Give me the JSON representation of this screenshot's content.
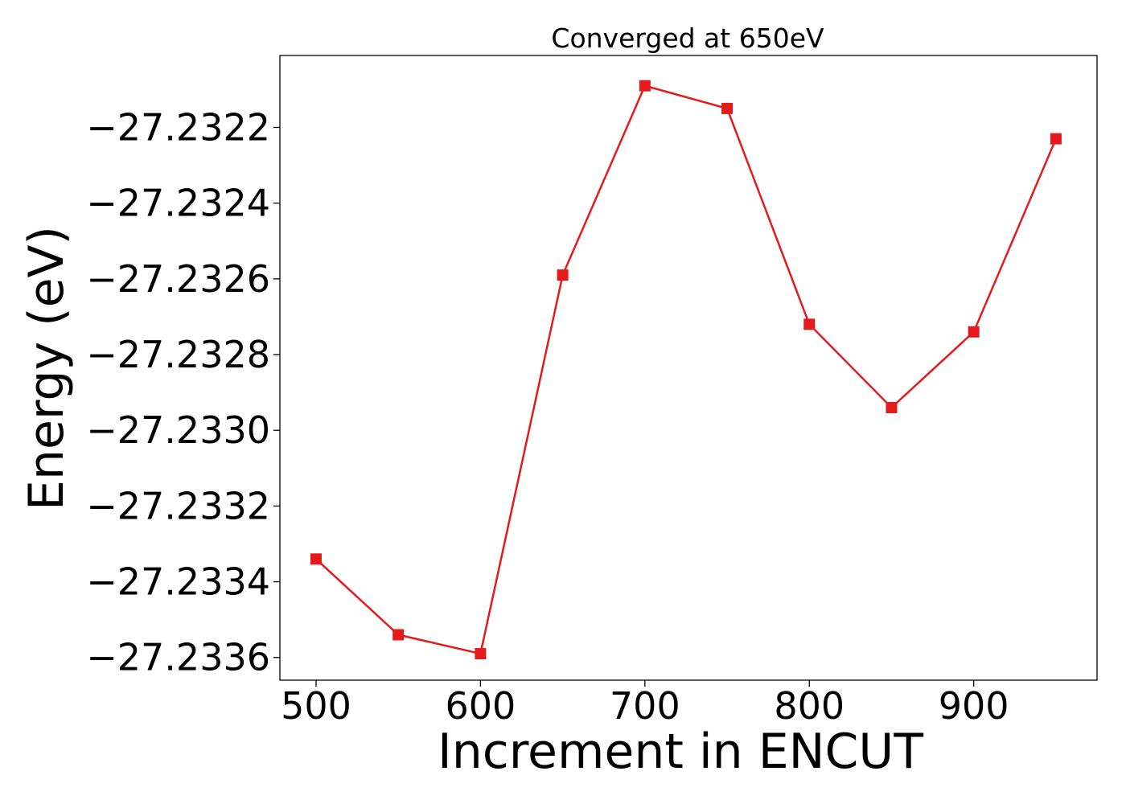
{
  "chart_data": {
    "type": "line",
    "title": "Converged at 650eV",
    "xlabel": "Increment in ENCUT",
    "ylabel": "Energy (eV)",
    "x": [
      500,
      550,
      600,
      650,
      700,
      750,
      800,
      850,
      900,
      950
    ],
    "series": [
      {
        "values": [
          -27.23334,
          -27.23354,
          -27.23359,
          -27.23259,
          -27.23209,
          -27.23215,
          -27.23272,
          -27.23294,
          -27.23274,
          -27.23223
        ],
        "color": "#e41a1c",
        "marker": "square"
      }
    ],
    "xlim": [
      478,
      975
    ],
    "ylim": [
      -27.23366,
      -27.23201
    ],
    "xticks": [
      500,
      600,
      700,
      800,
      900
    ],
    "xtick_labels": [
      "500",
      "600",
      "700",
      "800",
      "900"
    ],
    "yticks": [
      -27.2336,
      -27.2334,
      -27.2332,
      -27.233,
      -27.2328,
      -27.2326,
      -27.2324,
      -27.2322
    ],
    "ytick_labels": [
      "−27.2336",
      "−27.2334",
      "−27.2332",
      "−27.2330",
      "−27.2328",
      "−27.2326",
      "−27.2324",
      "−27.2322"
    ],
    "grid": false,
    "legend": "none"
  }
}
